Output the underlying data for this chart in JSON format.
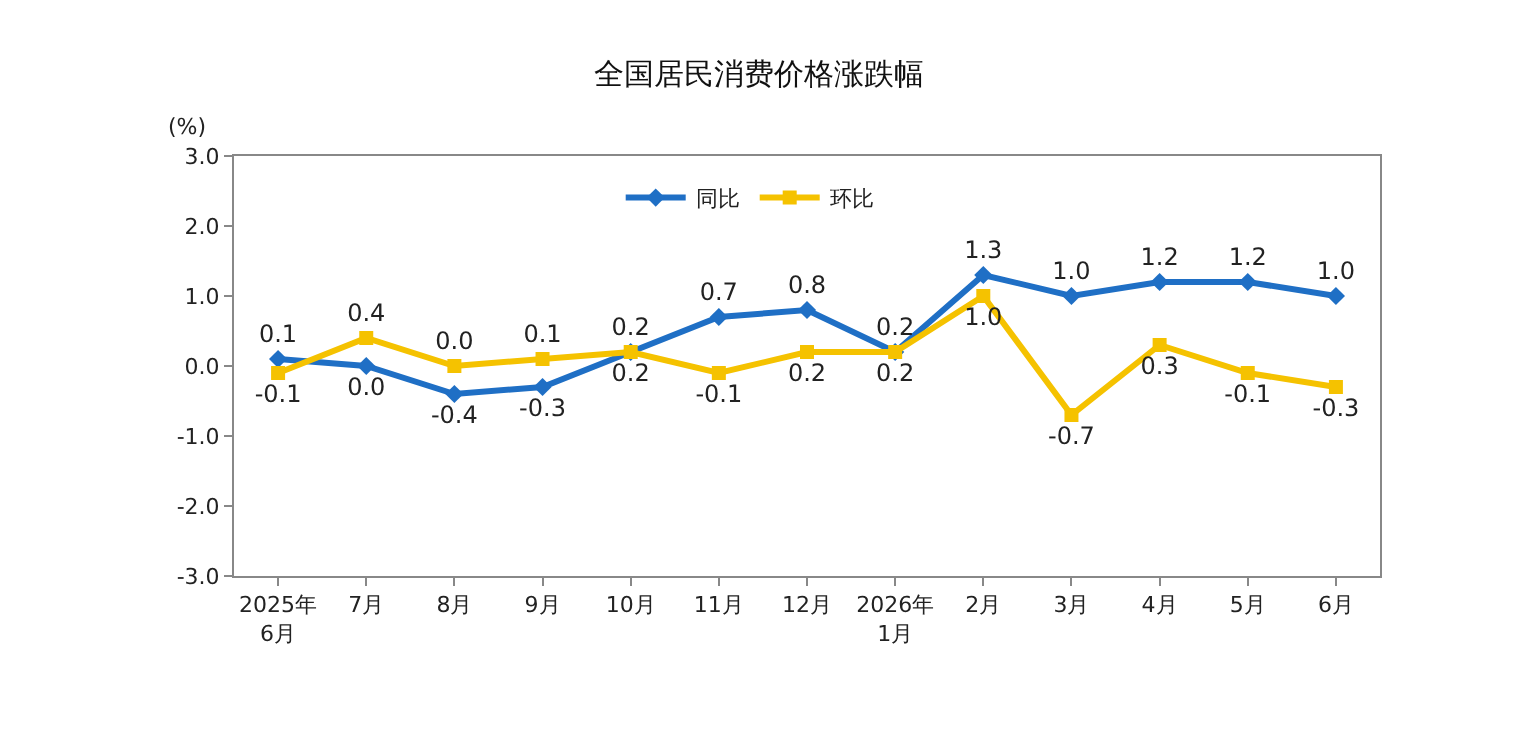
{
  "chart_data": {
    "type": "line",
    "title": "全国居民消费价格涨跌幅",
    "ylabel": "(%)",
    "categories": [
      "2025年\n6月",
      "7月",
      "8月",
      "9月",
      "10月",
      "11月",
      "12月",
      "2026年\n1月",
      "2月",
      "3月",
      "4月",
      "5月",
      "6月"
    ],
    "series": [
      {
        "name": "同比",
        "color": "#1f6fc5",
        "marker": "diamond",
        "values": [
          0.1,
          0.0,
          -0.4,
          -0.3,
          0.2,
          0.7,
          0.8,
          0.2,
          1.3,
          1.0,
          1.2,
          1.2,
          1.0
        ],
        "value_labels": [
          "0.1",
          "0.0",
          "-0.4",
          "-0.3",
          "0.2",
          "0.7",
          "0.8",
          "0.2",
          "1.3",
          "1.0",
          "1.2",
          "1.2",
          "1.0"
        ]
      },
      {
        "name": "环比",
        "color": "#f5c200",
        "marker": "square",
        "values": [
          -0.1,
          0.4,
          0.0,
          0.1,
          0.2,
          -0.1,
          0.2,
          0.2,
          1.0,
          -0.7,
          0.3,
          -0.1,
          -0.3
        ],
        "value_labels": [
          "-0.1",
          "0.4",
          "0.0",
          "0.1",
          "0.2",
          "-0.1",
          "0.2",
          "0.2",
          "1.0",
          "-0.7",
          "0.3",
          "-0.1",
          "-0.3"
        ]
      }
    ],
    "ylim": [
      -3,
      3
    ],
    "yticks": [
      {
        "value": -3,
        "label": "-3.0"
      },
      {
        "value": -2,
        "label": "-2.0"
      },
      {
        "value": -1,
        "label": "-1.0"
      },
      {
        "value": 0,
        "label": "0.0"
      },
      {
        "value": 1,
        "label": "1.0"
      },
      {
        "value": 2,
        "label": "2.0"
      },
      {
        "value": 3,
        "label": "3.0"
      }
    ],
    "grid": false,
    "legend": "top",
    "line_style": "solid"
  }
}
